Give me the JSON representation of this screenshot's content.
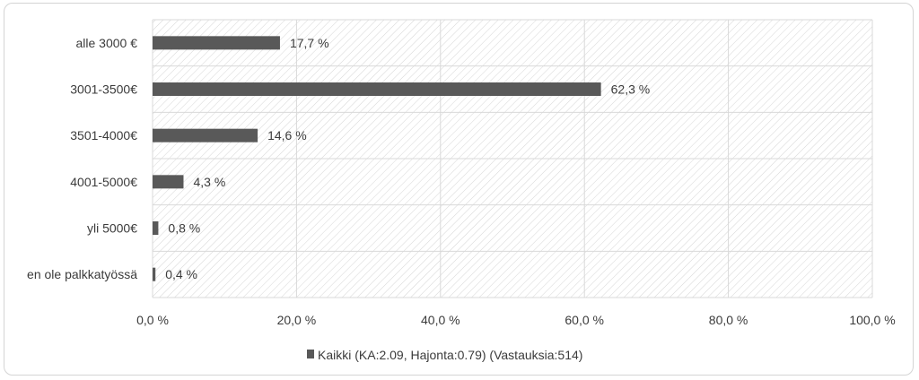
{
  "chart_data": {
    "type": "bar",
    "orientation": "horizontal",
    "categories": [
      "alle 3000 €",
      "3001-3500€",
      "3501-4000€",
      "4001-5000€",
      "yli 5000€",
      "en ole palkkatyössä"
    ],
    "series": [
      {
        "name": "Kaikki (KA:2.09, Hajonta:0.79) (Vastauksia:514)",
        "values": [
          17.7,
          62.3,
          14.6,
          4.3,
          0.8,
          0.4
        ],
        "labels": [
          "17,7 %",
          "62,3 %",
          "14,6 %",
          "4,3 %",
          "0,8 %",
          "0,4 %"
        ]
      }
    ],
    "xlim": [
      0,
      100
    ],
    "xticks": [
      0,
      20,
      40,
      60,
      80,
      100
    ],
    "xtick_labels": [
      "0,0 %",
      "20,0 %",
      "40,0 %",
      "60,0 %",
      "80,0 %",
      "100,0 %"
    ],
    "grid": true,
    "legend_position": "bottom",
    "colors": {
      "bar": "#595959",
      "grid": "#d9d9d9",
      "hatch": "#d6d6d6",
      "text": "#3b3b3b"
    }
  }
}
